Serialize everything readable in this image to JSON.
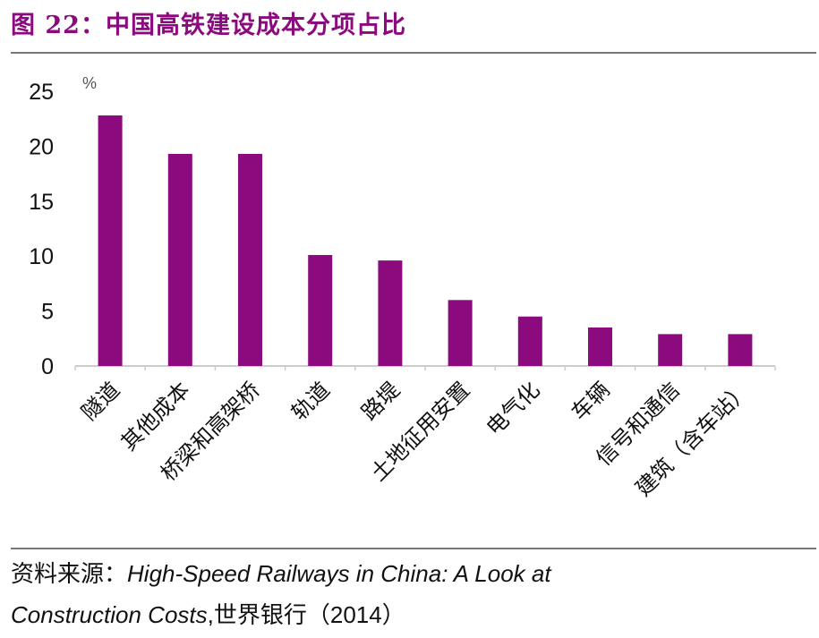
{
  "title": "图 22：中国高铁建设成本分项占比",
  "source": {
    "prefix": "资料来源：",
    "italic_1": "High-Speed Railways in China: A Look at",
    "italic_2": "Construction Costs",
    "suffix": ",世界银行（2014）"
  },
  "chart_data": {
    "type": "bar",
    "title": "",
    "ylabel": "%",
    "xlabel": "",
    "ylim": [
      0,
      25
    ],
    "yticks": [
      0,
      5,
      10,
      15,
      20,
      25
    ],
    "grid": false,
    "bar_color": "#8B0A7E",
    "categories": [
      "隧道",
      "其他成本",
      "桥梁和高架桥",
      "轨道",
      "路堤",
      "土地征用安置",
      "电气化",
      "车辆",
      "信号和通信",
      "建筑（含车站）"
    ],
    "values": [
      22.8,
      19.3,
      19.3,
      10.1,
      9.6,
      6.0,
      4.5,
      3.5,
      2.9,
      2.9
    ]
  }
}
